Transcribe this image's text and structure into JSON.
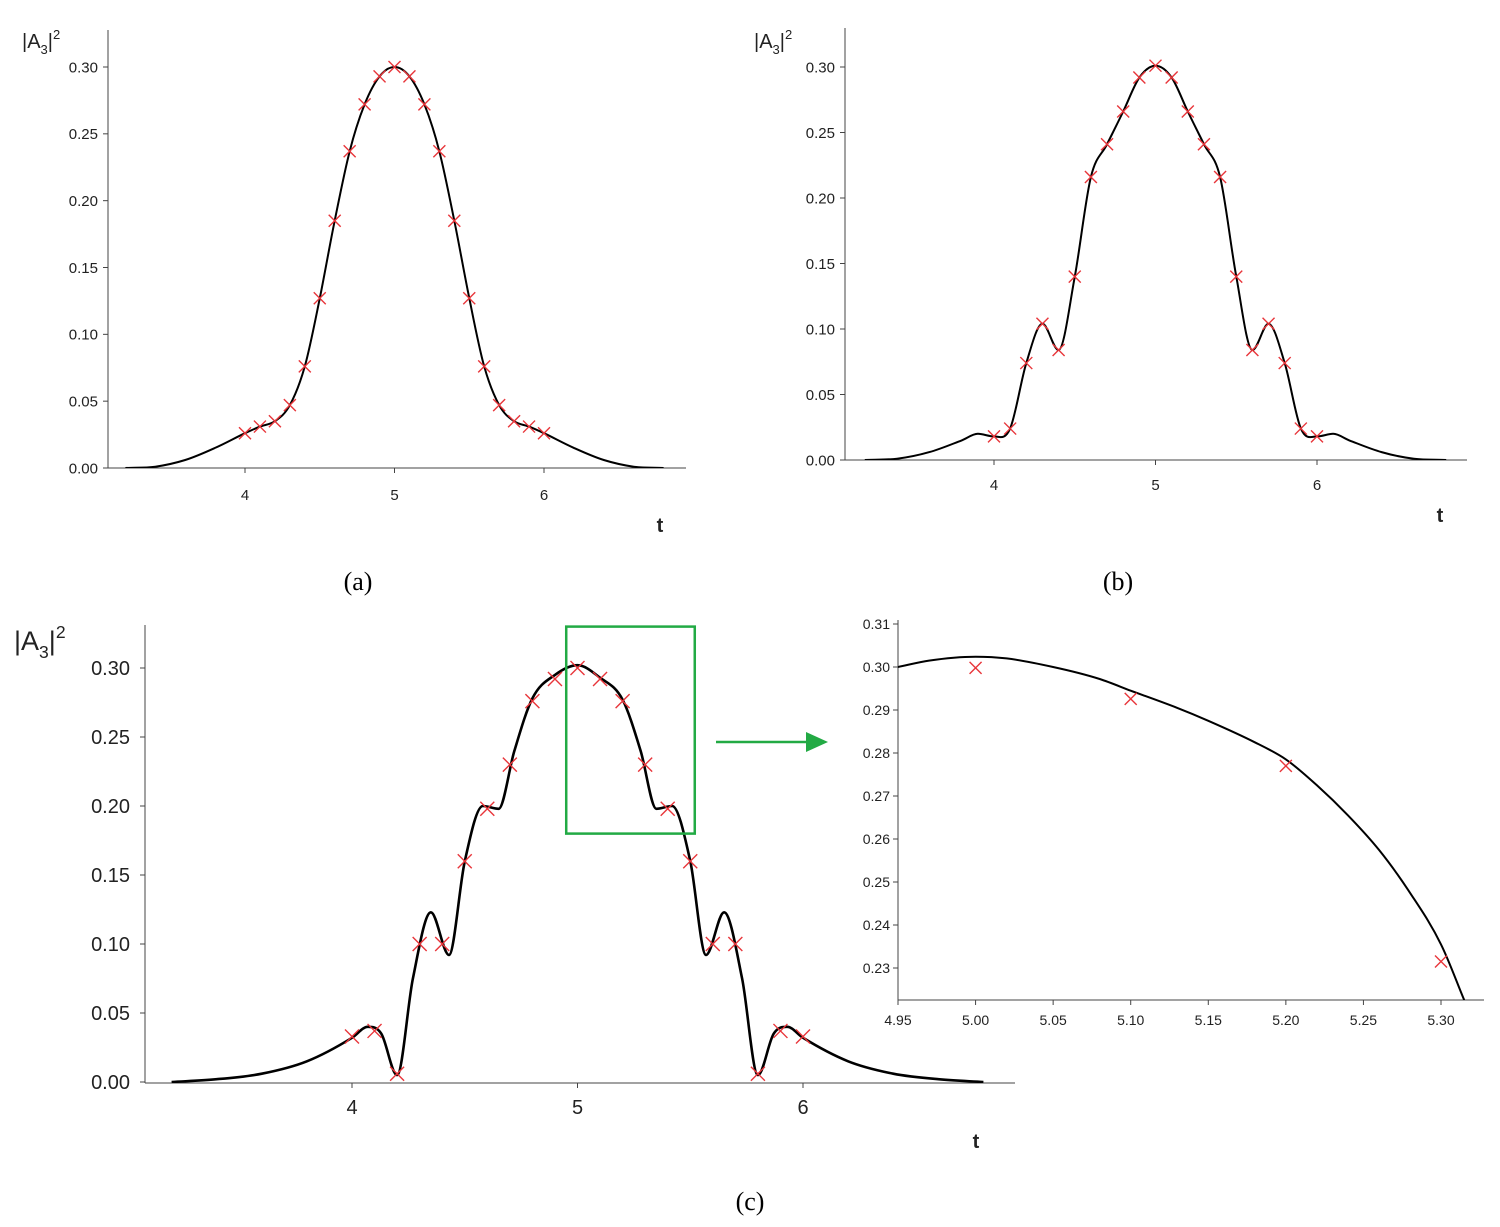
{
  "chart_data": [
    {
      "type": "line",
      "caption": "(a)",
      "xlabel": "t",
      "ylabel": "|A3|²",
      "ylabel_main": "|A",
      "ylabel_sub": "3",
      "ylabel_sup": "2",
      "xlim": [
        3.2,
        6.8
      ],
      "ylim": [
        0,
        0.33
      ],
      "xticks": [
        4,
        5,
        6
      ],
      "xtick_labels": [
        "4",
        "5",
        "6"
      ],
      "yticks": [
        0,
        0.05,
        0.1,
        0.15,
        0.2,
        0.25,
        0.3
      ],
      "ytick_labels": [
        "0.00",
        "0.05",
        "0.10",
        "0.15",
        "0.20",
        "0.25",
        "0.30"
      ],
      "series": [
        {
          "kind": "curve",
          "style": "line",
          "color": "#000000",
          "x": [
            3.2,
            3.4,
            3.6,
            3.8,
            4.0,
            4.1,
            4.2,
            4.3,
            4.4,
            4.5,
            4.6,
            4.7,
            4.8,
            4.9,
            5.0,
            5.1,
            5.2,
            5.3,
            5.4,
            5.5,
            5.6,
            5.7,
            5.8,
            5.9,
            6.0,
            6.2,
            6.4,
            6.6,
            6.8
          ],
          "y": [
            0.0,
            0.001,
            0.006,
            0.015,
            0.026,
            0.031,
            0.035,
            0.047,
            0.076,
            0.127,
            0.185,
            0.237,
            0.272,
            0.293,
            0.3,
            0.293,
            0.272,
            0.237,
            0.185,
            0.127,
            0.076,
            0.047,
            0.035,
            0.031,
            0.026,
            0.015,
            0.006,
            0.001,
            0.0
          ]
        },
        {
          "kind": "markers",
          "style": "x",
          "color": "#e8353a",
          "x": [
            4.0,
            4.1,
            4.2,
            4.3,
            4.4,
            4.5,
            4.6,
            4.7,
            4.8,
            4.9,
            5.0,
            5.1,
            5.2,
            5.3,
            5.4,
            5.5,
            5.6,
            5.7,
            5.8,
            5.9,
            6.0
          ],
          "y": [
            0.026,
            0.031,
            0.035,
            0.047,
            0.076,
            0.127,
            0.185,
            0.237,
            0.272,
            0.293,
            0.3,
            0.293,
            0.272,
            0.237,
            0.185,
            0.127,
            0.076,
            0.047,
            0.035,
            0.031,
            0.026
          ]
        }
      ]
    },
    {
      "type": "line",
      "caption": "(b)",
      "xlabel": "t",
      "ylabel": "|A3|²",
      "ylabel_main": "|A",
      "ylabel_sub": "3",
      "ylabel_sup": "2",
      "xlim": [
        3.2,
        6.9
      ],
      "ylim": [
        0,
        0.33
      ],
      "xticks": [
        4,
        5,
        6
      ],
      "xtick_labels": [
        "4",
        "5",
        "6"
      ],
      "yticks": [
        0,
        0.05,
        0.1,
        0.15,
        0.2,
        0.25,
        0.3
      ],
      "ytick_labels": [
        "0.00",
        "0.05",
        "0.10",
        "0.15",
        "0.20",
        "0.25",
        "0.30"
      ],
      "series": [
        {
          "kind": "curve",
          "style": "line",
          "color": "#000000",
          "x": [
            3.2,
            3.4,
            3.6,
            3.8,
            3.9,
            4.0,
            4.1,
            4.2,
            4.3,
            4.4,
            4.5,
            4.6,
            4.7,
            4.8,
            4.9,
            5.0,
            5.1,
            5.2,
            5.3,
            5.4,
            5.5,
            5.6,
            5.7,
            5.8,
            5.9,
            6.0,
            6.1,
            6.2,
            6.4,
            6.6,
            6.8
          ],
          "y": [
            0.0,
            0.001,
            0.006,
            0.015,
            0.02,
            0.018,
            0.024,
            0.074,
            0.104,
            0.084,
            0.14,
            0.216,
            0.241,
            0.266,
            0.292,
            0.301,
            0.292,
            0.266,
            0.241,
            0.216,
            0.14,
            0.084,
            0.104,
            0.074,
            0.024,
            0.018,
            0.02,
            0.015,
            0.006,
            0.001,
            0.0
          ]
        },
        {
          "kind": "markers",
          "style": "x",
          "color": "#e8353a",
          "x": [
            4.0,
            4.1,
            4.2,
            4.3,
            4.4,
            4.5,
            4.6,
            4.7,
            4.8,
            4.9,
            5.0,
            5.1,
            5.2,
            5.3,
            5.4,
            5.5,
            5.6,
            5.7,
            5.8,
            5.9,
            6.0
          ],
          "y": [
            0.018,
            0.024,
            0.074,
            0.104,
            0.084,
            0.14,
            0.216,
            0.241,
            0.266,
            0.292,
            0.301,
            0.292,
            0.266,
            0.241,
            0.216,
            0.14,
            0.084,
            0.104,
            0.074,
            0.024,
            0.018
          ]
        }
      ]
    },
    {
      "type": "line",
      "caption": "(c)",
      "xlabel": "",
      "ylabel": "|A3|²",
      "ylabel_main": "|A",
      "ylabel_sub": "3",
      "ylabel_sup": "2",
      "xlim": [
        3.2,
        7.0
      ],
      "ylim": [
        0,
        0.33
      ],
      "xticks": [
        4,
        5,
        6
      ],
      "xtick_labels": [
        "4",
        "5",
        "6"
      ],
      "yticks": [
        0,
        0.05,
        0.1,
        0.15,
        0.2,
        0.25,
        0.3
      ],
      "ytick_labels": [
        "0.00",
        "0.05",
        "0.10",
        "0.15",
        "0.20",
        "0.25",
        "0.30"
      ],
      "zoom_box": {
        "x": [
          4.95,
          5.52
        ],
        "y": [
          0.18,
          0.33
        ],
        "color": "#22aa44"
      },
      "series": [
        {
          "kind": "curve",
          "style": "line",
          "color": "#000000",
          "x": [
            3.2,
            3.4,
            3.6,
            3.8,
            4.0,
            4.07,
            4.13,
            4.2,
            4.27,
            4.35,
            4.43,
            4.5,
            4.58,
            4.65,
            4.72,
            4.8,
            4.9,
            5.0,
            5.1,
            5.2,
            5.28,
            5.35,
            5.42,
            5.5,
            5.57,
            5.65,
            5.73,
            5.8,
            5.87,
            5.93,
            6.0,
            6.2,
            6.4,
            6.6,
            6.8
          ],
          "y": [
            0.0,
            0.002,
            0.006,
            0.015,
            0.032,
            0.04,
            0.035,
            0.005,
            0.075,
            0.123,
            0.092,
            0.16,
            0.2,
            0.198,
            0.24,
            0.278,
            0.295,
            0.302,
            0.293,
            0.277,
            0.24,
            0.198,
            0.2,
            0.16,
            0.092,
            0.123,
            0.075,
            0.005,
            0.035,
            0.04,
            0.032,
            0.015,
            0.006,
            0.002,
            0.0
          ]
        },
        {
          "kind": "markers",
          "style": "x",
          "color": "#e8353a",
          "x": [
            4.0,
            4.1,
            4.2,
            4.3,
            4.4,
            4.5,
            4.6,
            4.7,
            4.8,
            4.9,
            5.0,
            5.1,
            5.2,
            5.3,
            5.4,
            5.5,
            5.6,
            5.7,
            5.8,
            5.9,
            6.0
          ],
          "y": [
            0.033,
            0.037,
            0.006,
            0.1,
            0.1,
            0.16,
            0.198,
            0.23,
            0.276,
            0.292,
            0.3,
            0.292,
            0.276,
            0.23,
            0.198,
            0.16,
            0.1,
            0.1,
            0.006,
            0.037,
            0.033
          ]
        }
      ]
    },
    {
      "type": "line",
      "caption": "",
      "xlabel": "t",
      "ylabel": "",
      "xlim": [
        4.95,
        5.32
      ],
      "ylim": [
        0.222,
        0.311
      ],
      "xticks": [
        4.95,
        5.0,
        5.05,
        5.1,
        5.15,
        5.2,
        5.25,
        5.3
      ],
      "xtick_labels": [
        "4.95",
        "5.00",
        "5.05",
        "5.10",
        "5.15",
        "5.20",
        "5.25",
        "5.30"
      ],
      "yticks": [
        0.23,
        0.24,
        0.25,
        0.26,
        0.27,
        0.28,
        0.29,
        0.3,
        0.31
      ],
      "ytick_labels": [
        "0.23",
        "0.24",
        "0.25",
        "0.26",
        "0.27",
        "0.28",
        "0.29",
        "0.30",
        "0.31"
      ],
      "series": [
        {
          "kind": "curve",
          "style": "line",
          "color": "#000000",
          "x": [
            4.95,
            4.97,
            5.0,
            5.02,
            5.05,
            5.08,
            5.1,
            5.13,
            5.15,
            5.18,
            5.2,
            5.22,
            5.24,
            5.26,
            5.28,
            5.3,
            5.315
          ],
          "y": [
            0.3,
            0.3015,
            0.3024,
            0.302,
            0.3,
            0.2972,
            0.2945,
            0.2905,
            0.2875,
            0.2825,
            0.2785,
            0.2725,
            0.2655,
            0.2575,
            0.2475,
            0.2355,
            0.2225
          ]
        },
        {
          "kind": "markers",
          "style": "x",
          "color": "#e8353a",
          "x": [
            5.0,
            5.1,
            5.2,
            5.3
          ],
          "y": [
            0.2998,
            0.2926,
            0.277,
            0.2315
          ]
        }
      ]
    }
  ]
}
